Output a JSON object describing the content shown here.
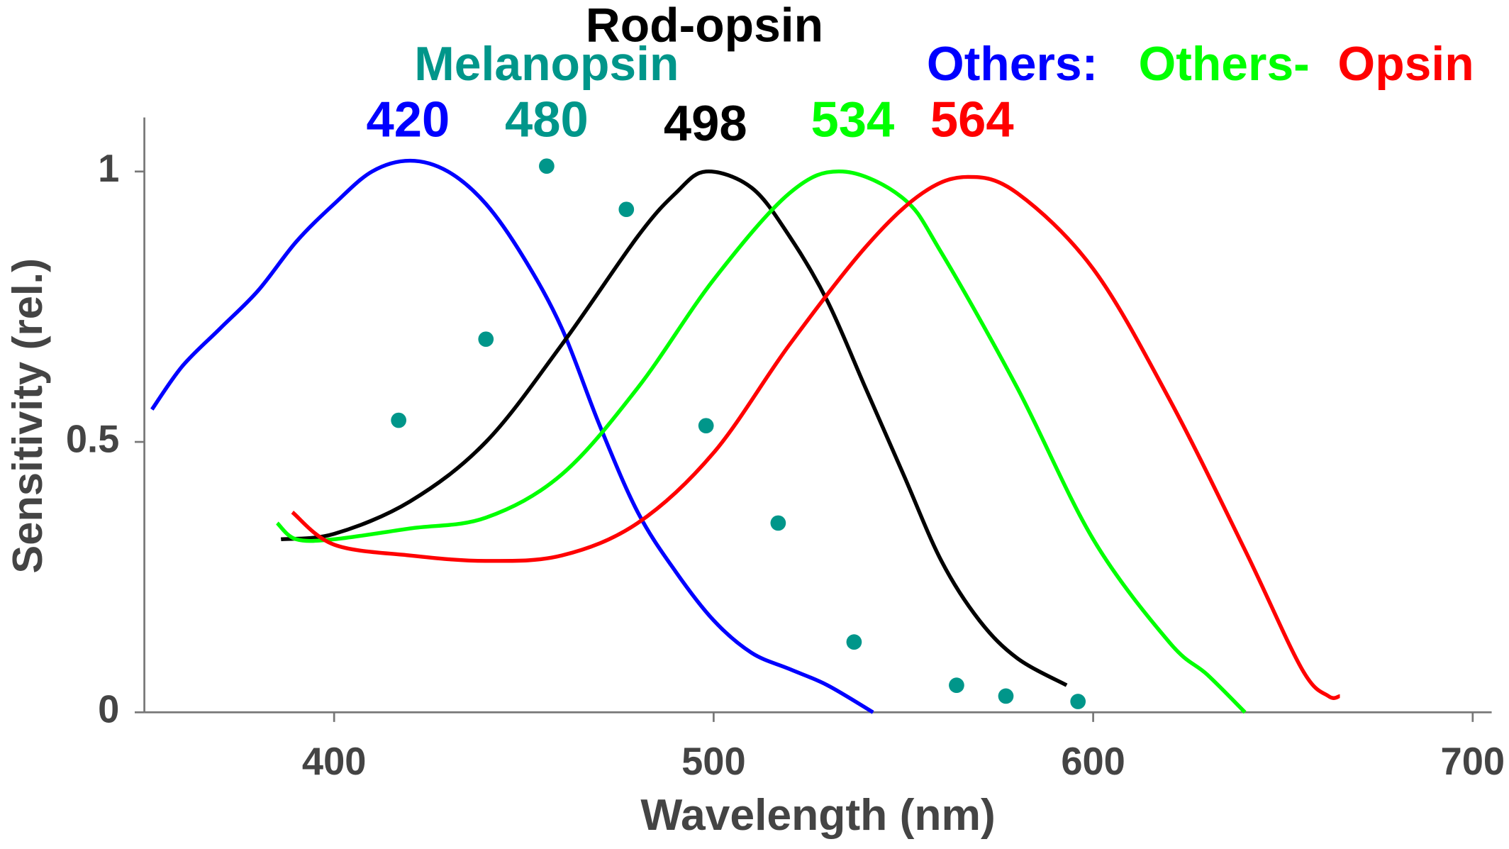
{
  "chart_data": {
    "type": "line",
    "xlabel": "Wavelength (nm)",
    "ylabel": "Sensitivity (rel.)",
    "xlim": [
      350,
      705
    ],
    "ylim": [
      0,
      1.1
    ],
    "xticks": [
      400,
      500,
      600,
      700
    ],
    "yticks": [
      0,
      0.5,
      1
    ],
    "annotations": [
      {
        "text": "Rod-opsin",
        "color": "#000000"
      },
      {
        "text": "Melanopsin",
        "color": "#00968a"
      },
      {
        "text": "Others:",
        "color": "#0000ff"
      },
      {
        "text": "Others-",
        "color": "#00ff00"
      },
      {
        "text": "Opsin",
        "color": "#ff0000"
      },
      {
        "text": "420",
        "color": "#0000ff"
      },
      {
        "text": "480",
        "color": "#00968a"
      },
      {
        "text": "498",
        "color": "#000000"
      },
      {
        "text": "534",
        "color": "#00ff00"
      },
      {
        "text": "564",
        "color": "#ff0000"
      }
    ],
    "series": [
      {
        "color": "#0000ff",
        "x": [
          352,
          360,
          370,
          380,
          390,
          400,
          410,
          420,
          430,
          440,
          450,
          460,
          470,
          480,
          490,
          500,
          510,
          520,
          530,
          542
        ],
        "values": [
          0.56,
          0.64,
          0.71,
          0.78,
          0.87,
          0.94,
          1.0,
          1.02,
          1.0,
          0.94,
          0.84,
          0.71,
          0.53,
          0.37,
          0.26,
          0.17,
          0.11,
          0.08,
          0.05,
          0.0
        ]
      },
      {
        "color": "#000000",
        "x": [
          386,
          400,
          420,
          440,
          460,
          480,
          490,
          498,
          510,
          520,
          530,
          540,
          550,
          560,
          570,
          580,
          593
        ],
        "values": [
          0.32,
          0.33,
          0.39,
          0.5,
          0.68,
          0.88,
          0.96,
          1.0,
          0.97,
          0.88,
          0.76,
          0.6,
          0.44,
          0.28,
          0.17,
          0.1,
          0.05
        ]
      },
      {
        "color": "#00ff00",
        "x": [
          385,
          390,
          400,
          420,
          440,
          460,
          480,
          500,
          520,
          534,
          550,
          560,
          580,
          600,
          620,
          630,
          640
        ],
        "values": [
          0.35,
          0.32,
          0.32,
          0.34,
          0.36,
          0.44,
          0.6,
          0.8,
          0.96,
          1.0,
          0.95,
          0.85,
          0.6,
          0.32,
          0.13,
          0.07,
          0.0
        ]
      },
      {
        "color": "#ff0000",
        "x": [
          389,
          400,
          420,
          440,
          460,
          480,
          500,
          520,
          540,
          555,
          567,
          580,
          600,
          620,
          640,
          655,
          662,
          665
        ],
        "values": [
          0.37,
          0.31,
          0.29,
          0.28,
          0.29,
          0.35,
          0.48,
          0.68,
          0.86,
          0.96,
          0.99,
          0.96,
          0.82,
          0.58,
          0.3,
          0.08,
          0.03,
          0.03
        ]
      },
      {
        "type": "scatter",
        "color": "#00968a",
        "x": [
          417,
          440,
          456,
          477,
          498,
          517,
          537,
          564,
          577,
          596
        ],
        "values": [
          0.54,
          0.69,
          1.01,
          0.93,
          0.53,
          0.35,
          0.13,
          0.05,
          0.03,
          0.02
        ]
      }
    ]
  }
}
